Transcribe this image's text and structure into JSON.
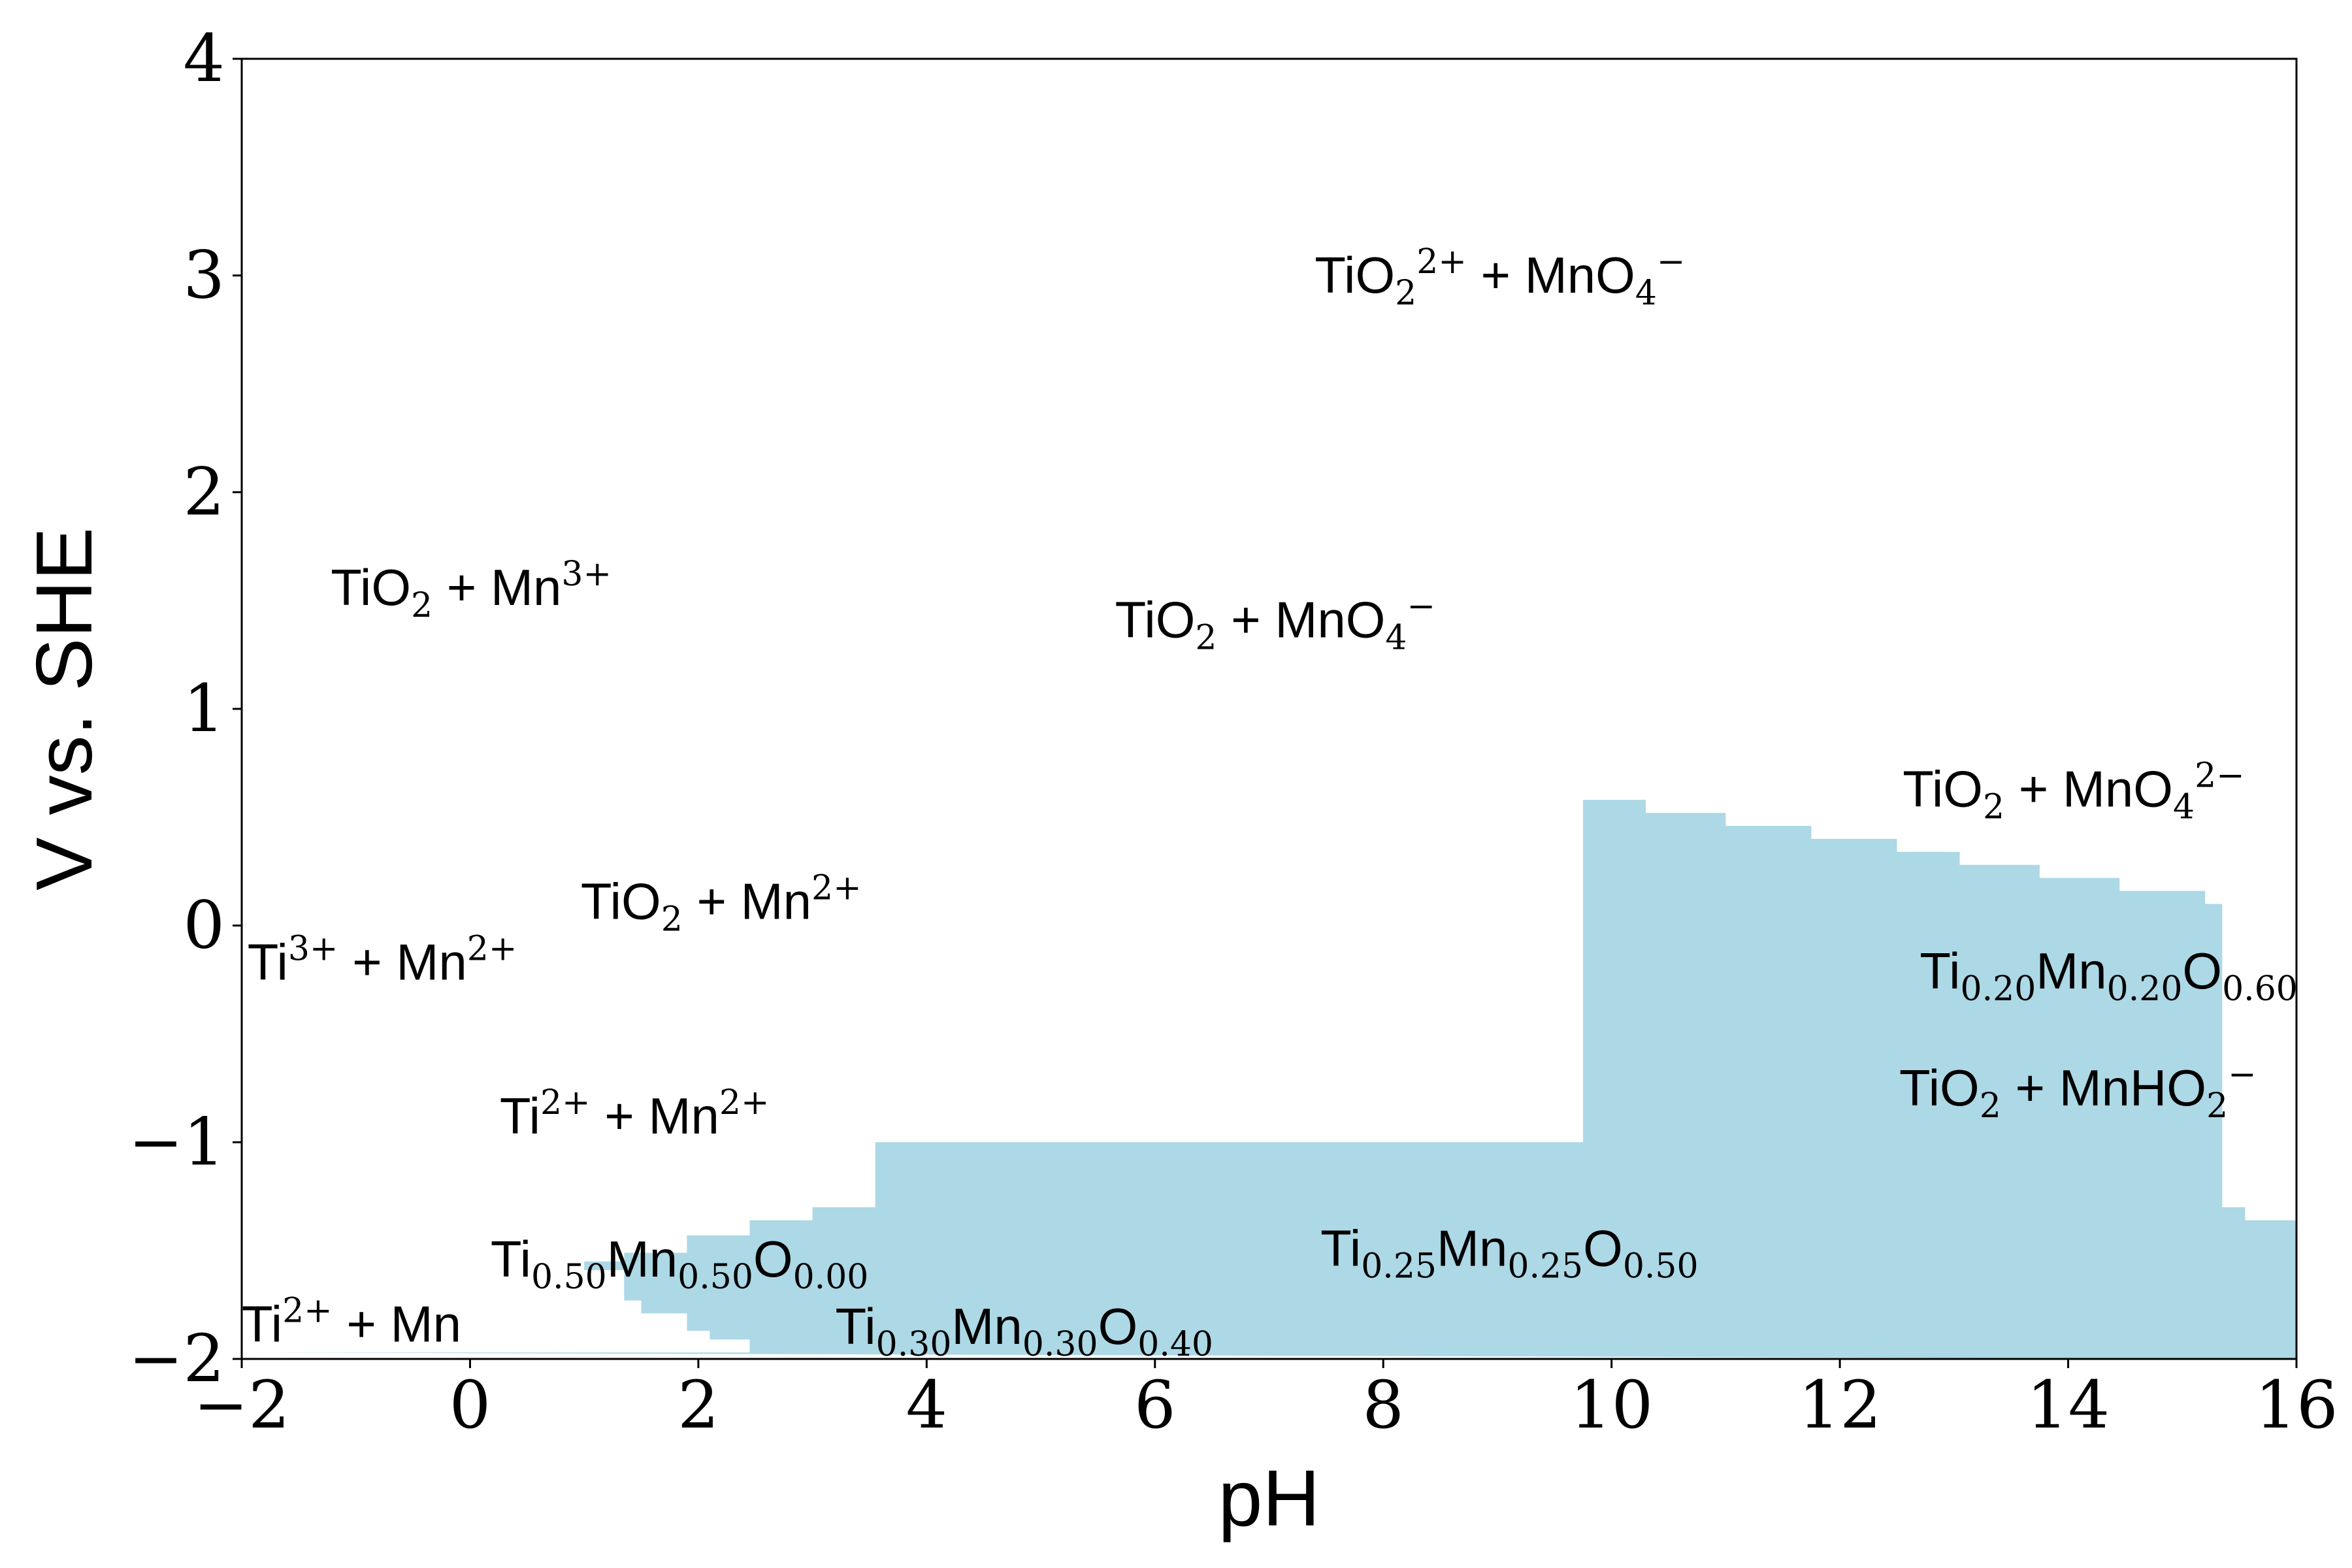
{
  "chart_data": {
    "type": "area",
    "xlabel": "pH",
    "ylabel": "V vs. SHE",
    "xlim": [
      -2,
      16
    ],
    "ylim": [
      -2,
      4
    ],
    "xticks": [
      -2,
      0,
      2,
      4,
      6,
      8,
      10,
      12,
      14,
      16
    ],
    "yticks": [
      -2,
      -1,
      0,
      1,
      2,
      3,
      4
    ],
    "xtick_labels": [
      "−2",
      "0",
      "2",
      "4",
      "6",
      "8",
      "10",
      "12",
      "14",
      "16"
    ],
    "ytick_labels": [
      "−2",
      "−1",
      "0",
      "1",
      "2",
      "3",
      "4"
    ],
    "fill_color": "#add8e6",
    "grid": false,
    "shaded_region_boundary": [
      [
        -2,
        -1.97
      ],
      [
        2.45,
        -1.97
      ],
      [
        2.45,
        -1.91
      ],
      [
        2.1,
        -1.91
      ],
      [
        2.1,
        -1.87
      ],
      [
        1.9,
        -1.87
      ],
      [
        1.9,
        -1.79
      ],
      [
        1.5,
        -1.79
      ],
      [
        1.5,
        -1.73
      ],
      [
        1.35,
        -1.73
      ],
      [
        1.35,
        -1.59
      ],
      [
        1.0,
        -1.59
      ],
      [
        1.0,
        -1.55
      ],
      [
        1.35,
        -1.55
      ],
      [
        1.35,
        -1.51
      ],
      [
        1.9,
        -1.51
      ],
      [
        1.9,
        -1.43
      ],
      [
        2.45,
        -1.43
      ],
      [
        2.45,
        -1.36
      ],
      [
        3.0,
        -1.36
      ],
      [
        3.0,
        -1.3
      ],
      [
        3.55,
        -1.3
      ],
      [
        3.55,
        -1.0
      ],
      [
        9.75,
        -1.0
      ],
      [
        9.75,
        0.58
      ],
      [
        10.3,
        0.58
      ],
      [
        10.3,
        0.52
      ],
      [
        11.0,
        0.52
      ],
      [
        11.0,
        0.46
      ],
      [
        11.75,
        0.46
      ],
      [
        11.75,
        0.4
      ],
      [
        12.5,
        0.4
      ],
      [
        12.5,
        0.34
      ],
      [
        13.05,
        0.34
      ],
      [
        13.05,
        0.28
      ],
      [
        13.75,
        0.28
      ],
      [
        13.75,
        0.22
      ],
      [
        14.45,
        0.22
      ],
      [
        14.45,
        0.16
      ],
      [
        15.2,
        0.16
      ],
      [
        15.2,
        0.1
      ],
      [
        15.35,
        0.1
      ],
      [
        15.35,
        -1.3
      ],
      [
        15.55,
        -1.3
      ],
      [
        15.55,
        -1.36
      ],
      [
        16,
        -1.36
      ],
      [
        16,
        -2
      ]
    ],
    "annotations": [
      {
        "x": 7.4,
        "y": 2.92,
        "parts": [
          [
            "n",
            "TiO"
          ],
          [
            "sub",
            "2"
          ],
          [
            "sup",
            "2+"
          ],
          [
            "n",
            " + MnO"
          ],
          [
            "sub",
            "4"
          ],
          [
            "sup",
            "−"
          ]
        ]
      },
      {
        "x": -1.22,
        "y": 1.48,
        "parts": [
          [
            "n",
            "TiO"
          ],
          [
            "sub",
            "2"
          ],
          [
            "n",
            " + Mn"
          ],
          [
            "sup",
            "3+"
          ]
        ]
      },
      {
        "x": 5.65,
        "y": 1.33,
        "parts": [
          [
            "n",
            "TiO"
          ],
          [
            "sub",
            "2"
          ],
          [
            "n",
            " + MnO"
          ],
          [
            "sub",
            "4"
          ],
          [
            "sup",
            "−"
          ]
        ]
      },
      {
        "x": 12.55,
        "y": 0.55,
        "parts": [
          [
            "n",
            "TiO"
          ],
          [
            "sub",
            "2"
          ],
          [
            "n",
            " + MnO"
          ],
          [
            "sub",
            "4"
          ],
          [
            "sup",
            "2−"
          ]
        ]
      },
      {
        "x": 0.97,
        "y": 0.03,
        "parts": [
          [
            "n",
            "TiO"
          ],
          [
            "sub",
            "2"
          ],
          [
            "n",
            " + Mn"
          ],
          [
            "sup",
            "2+"
          ]
        ]
      },
      {
        "x": -1.95,
        "y": -0.25,
        "parts": [
          [
            "n",
            "Ti"
          ],
          [
            "sup",
            "3+"
          ],
          [
            "n",
            " + Mn"
          ],
          [
            "sup",
            "2+"
          ]
        ]
      },
      {
        "x": 12.7,
        "y": -0.29,
        "parts": [
          [
            "n",
            "Ti"
          ],
          [
            "sub",
            "0.20"
          ],
          [
            "n",
            "Mn"
          ],
          [
            "sub",
            "0.20"
          ],
          [
            "n",
            "O"
          ],
          [
            "sub",
            "0.60"
          ]
        ]
      },
      {
        "x": 12.52,
        "y": -0.83,
        "parts": [
          [
            "n",
            "TiO"
          ],
          [
            "sub",
            "2"
          ],
          [
            "n",
            " + MnHO"
          ],
          [
            "sub",
            "2"
          ],
          [
            "sup",
            "−"
          ]
        ]
      },
      {
        "x": 0.26,
        "y": -0.96,
        "parts": [
          [
            "n",
            "Ti"
          ],
          [
            "sup",
            "2+"
          ],
          [
            "n",
            " + Mn"
          ],
          [
            "sup",
            "2+"
          ]
        ]
      },
      {
        "x": 7.45,
        "y": -1.57,
        "parts": [
          [
            "n",
            "Ti"
          ],
          [
            "sub",
            "0.25"
          ],
          [
            "n",
            "Mn"
          ],
          [
            "sub",
            "0.25"
          ],
          [
            "n",
            "O"
          ],
          [
            "sub",
            "0.50"
          ]
        ]
      },
      {
        "x": 0.18,
        "y": -1.62,
        "parts": [
          [
            "n",
            "Ti"
          ],
          [
            "sub",
            "0.50"
          ],
          [
            "n",
            "Mn"
          ],
          [
            "sub",
            "0.50"
          ],
          [
            "n",
            "O"
          ],
          [
            "sub",
            "0.00"
          ]
        ]
      },
      {
        "x": -2.0,
        "y": -1.92,
        "parts": [
          [
            "n",
            "Ti"
          ],
          [
            "sup",
            "2+"
          ],
          [
            "n",
            " + Mn"
          ]
        ]
      },
      {
        "x": 3.2,
        "y": -1.93,
        "parts": [
          [
            "n",
            "Ti"
          ],
          [
            "sub",
            "0.30"
          ],
          [
            "n",
            "Mn"
          ],
          [
            "sub",
            "0.30"
          ],
          [
            "n",
            "O"
          ],
          [
            "sub",
            "0.40"
          ]
        ]
      }
    ]
  }
}
